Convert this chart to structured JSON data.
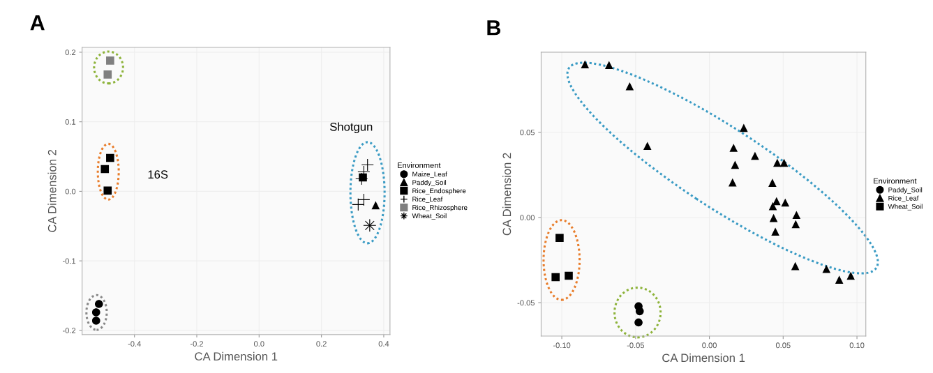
{
  "chart_data": [
    {
      "type": "scatter",
      "title": "A",
      "xlabel": "CA Dimension 1",
      "ylabel": "CA Dimension 2",
      "legend_title": "Environment",
      "legend": "right",
      "grid": true,
      "xlim": [
        -0.568,
        0.42
      ],
      "ylim": [
        -0.206,
        0.207
      ],
      "xticks": [
        {
          "value": -0.4,
          "label": "-0.4"
        },
        {
          "value": -0.2,
          "label": "-0.2"
        },
        {
          "value": 0,
          "label": "0.0"
        },
        {
          "value": 0.2,
          "label": "0.2"
        },
        {
          "value": 0.4,
          "label": "0.4"
        }
      ],
      "yticks": [
        {
          "value": -0.2,
          "label": "-0.2"
        },
        {
          "value": -0.1,
          "label": "-0.1"
        },
        {
          "value": 0,
          "label": "0.0"
        },
        {
          "value": 0.1,
          "label": "0.1"
        },
        {
          "value": 0.2,
          "label": "0.2"
        }
      ],
      "annotations": [
        "16S",
        "Shotgun"
      ],
      "series": [
        {
          "name": "Maize_Leaf",
          "color": "#000000",
          "marker": "circle",
          "x": [
            -0.514,
            -0.523,
            -0.523
          ],
          "values": [
            -0.162,
            -0.174,
            -0.186
          ]
        },
        {
          "name": "Paddy_Soil",
          "color": "#000000",
          "marker": "triangle",
          "x": [
            0.374
          ],
          "values": [
            -0.02
          ]
        },
        {
          "name": "Rice_Endosphere",
          "color": "#000000",
          "marker": "square",
          "x": [
            -0.478,
            -0.495,
            -0.486,
            0.333
          ],
          "values": [
            0.048,
            0.032,
            0.001,
            0.02
          ]
        },
        {
          "name": "Rice_Leaf",
          "color": "#000000",
          "marker": "cross",
          "x": [
            0.348,
            0.336,
            0.329,
            0.318,
            0.336
          ],
          "values": [
            0.038,
            0.028,
            0.018,
            -0.019,
            -0.012
          ]
        },
        {
          "name": "Rice_Rhizosphere",
          "color": "#808080",
          "marker": "square",
          "x": [
            -0.478,
            -0.486
          ],
          "values": [
            0.188,
            0.168
          ]
        },
        {
          "name": "Wheat_Soil",
          "color": "#000000",
          "marker": "star",
          "x": [
            0.355
          ],
          "values": [
            -0.049
          ]
        }
      ]
    },
    {
      "type": "scatter",
      "title": "B",
      "xlabel": "CA Dimension 1",
      "ylabel": "CA Dimension 2",
      "legend_title": "Environment",
      "legend": "right",
      "grid": true,
      "xlim": [
        -0.114,
        0.106
      ],
      "ylim": [
        -0.0696,
        0.097
      ],
      "xticks": [
        {
          "value": -0.1,
          "label": "-0.10"
        },
        {
          "value": -0.05,
          "label": "-0.05"
        },
        {
          "value": 0,
          "label": "0.00"
        },
        {
          "value": 0.05,
          "label": "0.05"
        },
        {
          "value": 0.1,
          "label": "0.10"
        }
      ],
      "yticks": [
        {
          "value": -0.05,
          "label": "-0.05"
        },
        {
          "value": 0,
          "label": "0.00"
        },
        {
          "value": 0.05,
          "label": "0.05"
        }
      ],
      "series": [
        {
          "name": "Paddy_Soil",
          "color": "#000000",
          "marker": "circle",
          "x": [
            -0.048,
            -0.0472,
            -0.048
          ],
          "values": [
            -0.0521,
            -0.055,
            -0.0616
          ]
        },
        {
          "name": "Rice_Leaf",
          "color": "#000000",
          "marker": "triangle",
          "x": [
            -0.0843,
            -0.068,
            -0.054,
            -0.042,
            0.0233,
            0.0164,
            0.0174,
            0.0157,
            0.0309,
            0.046,
            0.0506,
            0.0427,
            0.0455,
            0.043,
            0.0514,
            0.0435,
            0.0447,
            0.059,
            0.0585,
            0.0582,
            0.0793,
            0.088,
            0.0958
          ],
          "values": [
            0.0899,
            0.0895,
            0.077,
            0.042,
            0.0526,
            0.0409,
            0.0309,
            0.0206,
            0.0362,
            0.0321,
            0.0321,
            0.0204,
            0.0096,
            0.0067,
            0.0088,
            -0.0003,
            -0.0083,
            0.0015,
            -0.0039,
            -0.0285,
            -0.0302,
            -0.0365,
            -0.0342
          ]
        },
        {
          "name": "Wheat_Soil",
          "color": "#000000",
          "marker": "square",
          "x": [
            -0.1015,
            -0.1042,
            -0.0953
          ],
          "values": [
            -0.012,
            -0.035,
            -0.0342
          ]
        }
      ]
    }
  ]
}
